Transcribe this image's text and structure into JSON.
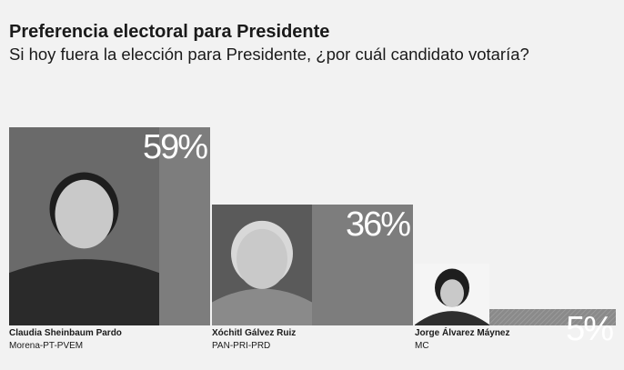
{
  "header": {
    "title": "Preferencia electoral para Presidente",
    "subtitle": "Si hoy fuera la elección para Presidente, ¿por cuál candidato votaría?"
  },
  "chart_data": {
    "type": "bar",
    "categories": [
      "Claudia Sheinbaum Pardo",
      "Xóchitl Gálvez Ruiz",
      "Jorge Álvarez Máynez"
    ],
    "values": [
      59,
      36,
      5
    ],
    "data_labels": [
      "59%",
      "36%",
      "5%"
    ],
    "parties": [
      "Morena-PT-PVEM",
      "PAN-PRI-PRD",
      "MC"
    ],
    "title": "Preferencia electoral para Presidente",
    "ylim": [
      0,
      59
    ],
    "grid": false,
    "legend": "none"
  },
  "colors": {
    "background": "#f2f2f2",
    "bar_fill": "#7d7d7d",
    "label_text": "#ffffff"
  },
  "icons": [
    "candidate-photo-sheinbaum-icon",
    "candidate-photo-galvez-icon",
    "candidate-photo-maynez-icon"
  ]
}
